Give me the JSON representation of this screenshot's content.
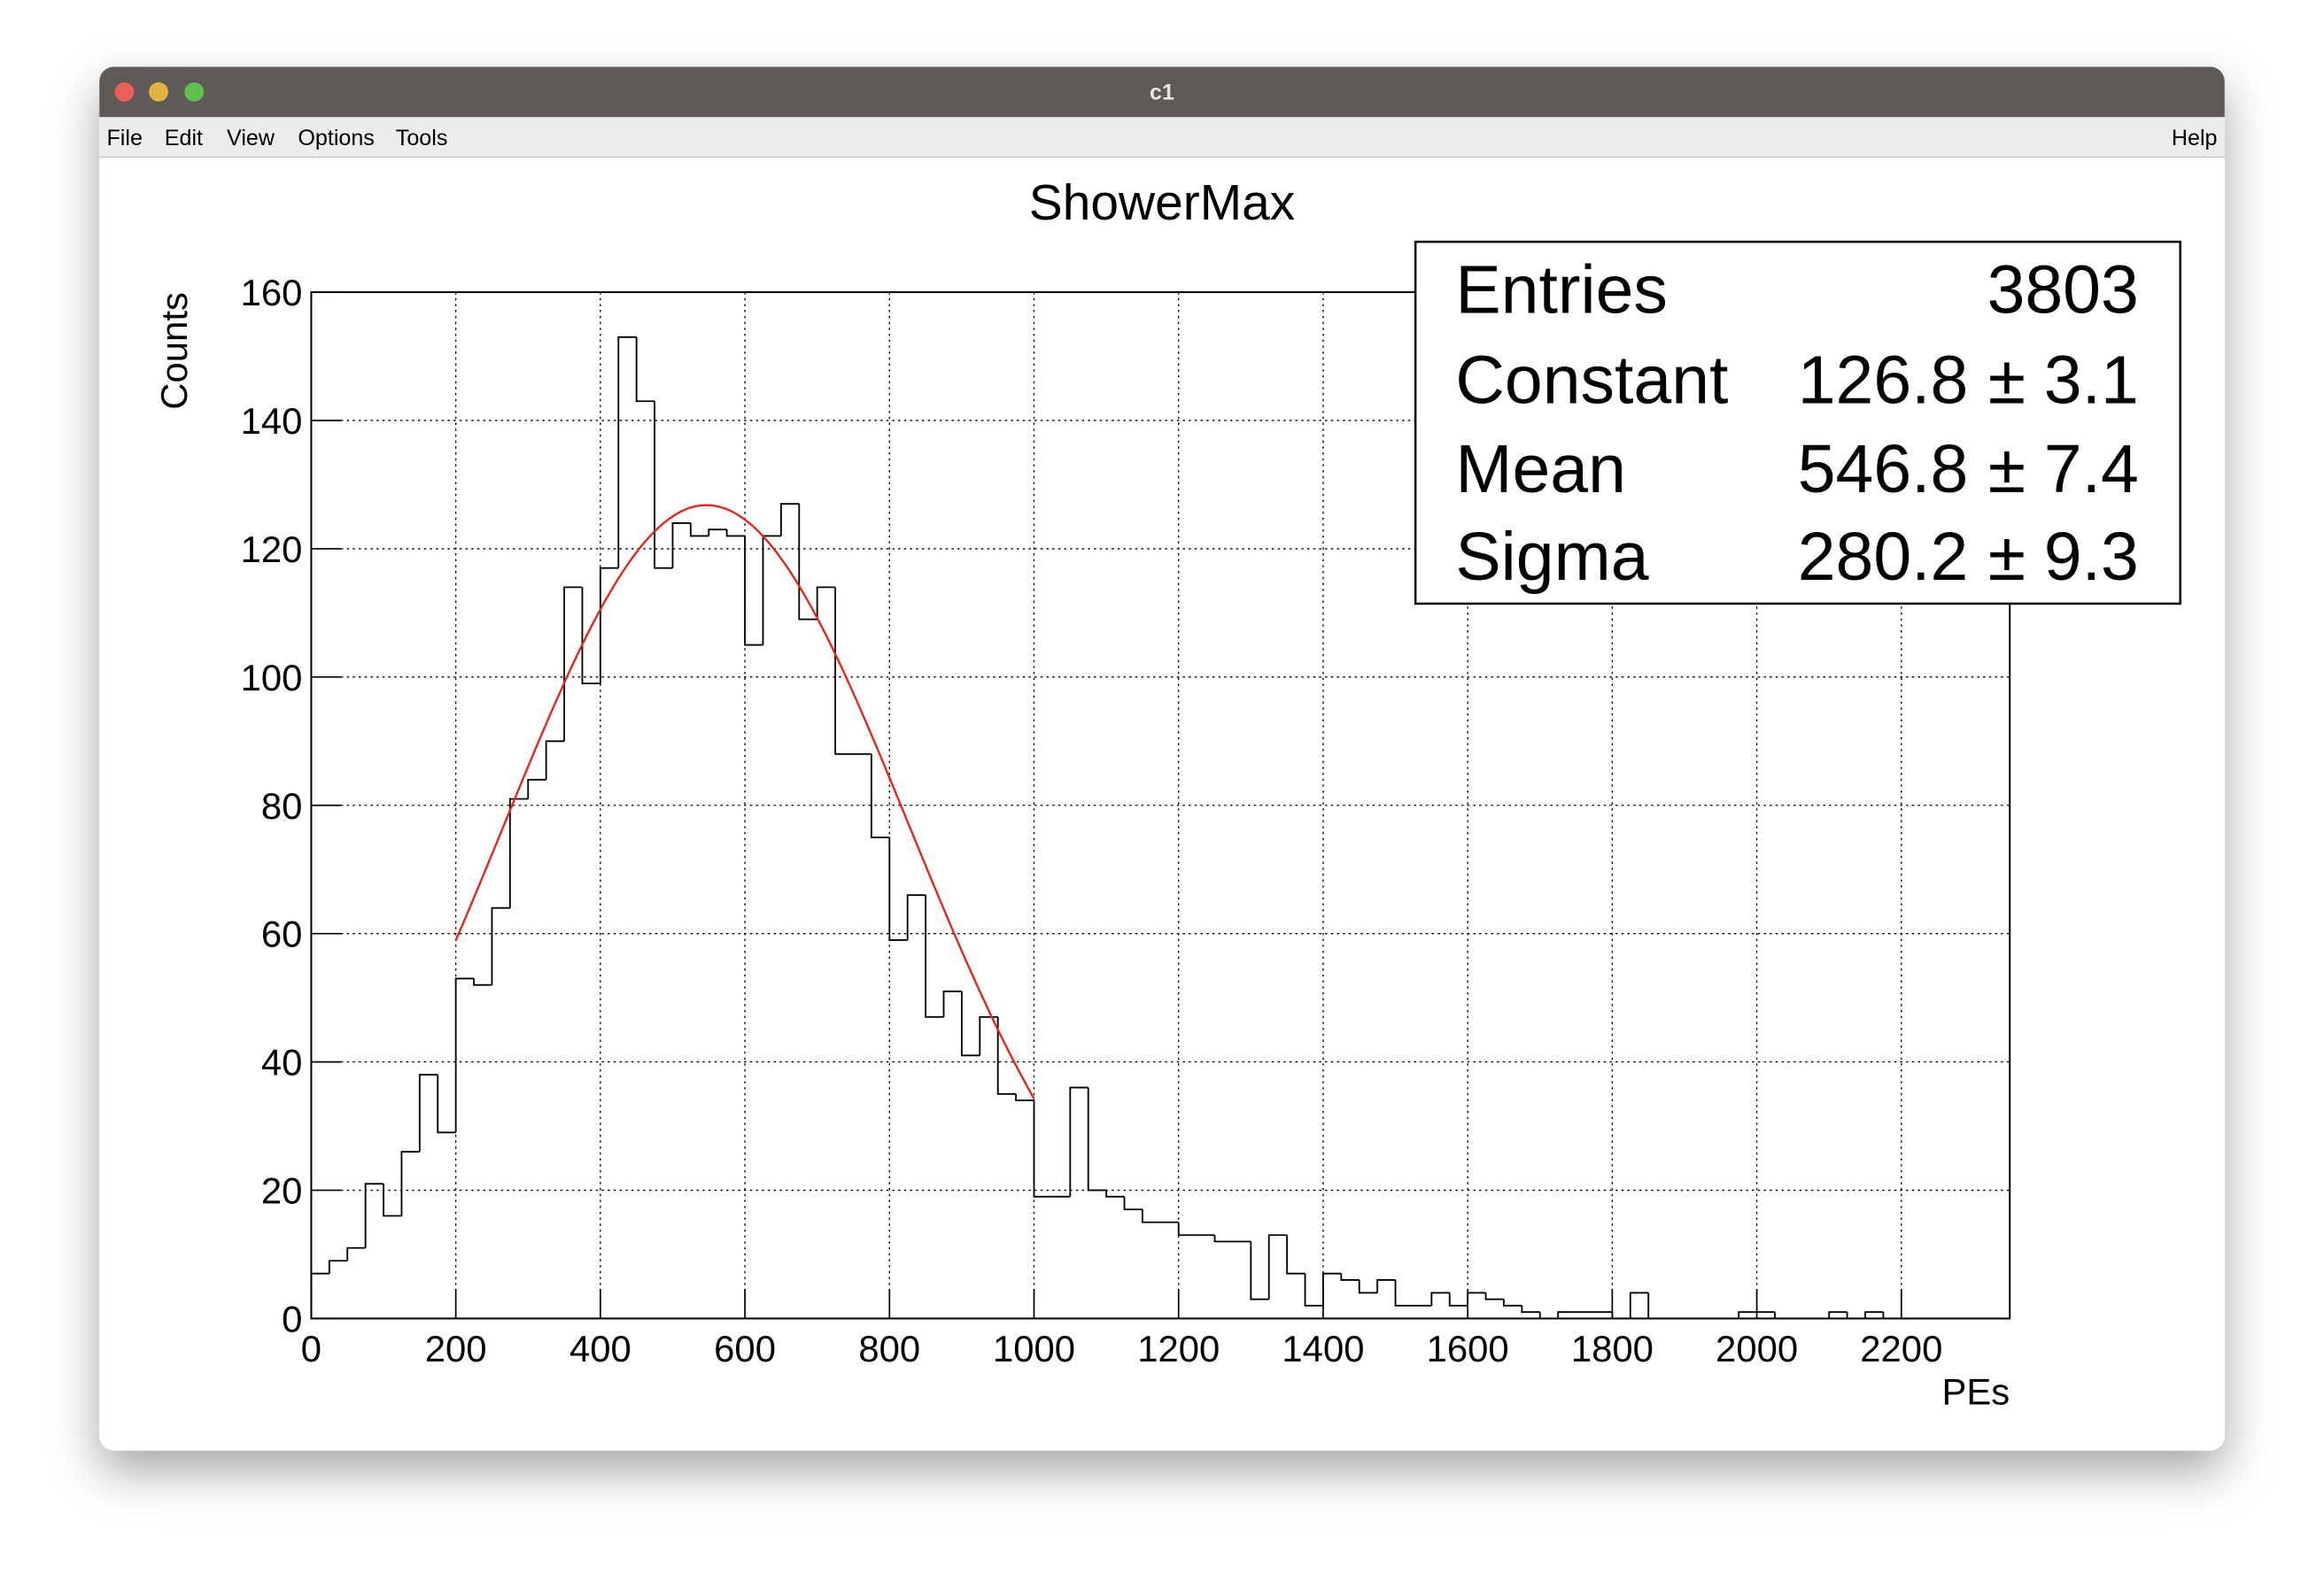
{
  "window": {
    "title": "c1",
    "menu": [
      "File",
      "Edit",
      "View",
      "Options",
      "Tools"
    ],
    "help": "Help"
  },
  "chart_data": {
    "type": "histogram",
    "title": "ShowerMax",
    "x_label": "PEs",
    "y_label": "Counts",
    "bins": [
      0,
      25,
      50,
      75,
      100,
      125,
      150,
      175,
      200,
      225,
      250,
      275,
      300,
      325,
      350,
      375,
      400,
      425,
      450,
      475,
      500,
      525,
      550,
      575,
      600,
      625,
      650,
      675,
      700,
      725,
      750,
      775,
      800,
      825,
      850,
      875,
      900,
      925,
      950,
      975,
      1000,
      1025,
      1050,
      1075,
      1100,
      1125,
      1150,
      1175,
      1200,
      1225,
      1250,
      1275,
      1300,
      1325,
      1350,
      1375,
      1400,
      1425,
      1450,
      1475,
      1500,
      1525,
      1550,
      1575,
      1600,
      1625,
      1650,
      1675,
      1700,
      1725,
      1750,
      1775,
      1800,
      1825,
      1850,
      1875,
      1900,
      1925,
      1950,
      1975,
      2000,
      2025,
      2050,
      2075,
      2100,
      2125,
      2150,
      2175,
      2200,
      2225,
      2250,
      2275,
      2300,
      2325,
      2350
    ],
    "values": [
      7,
      9,
      11,
      21,
      16,
      26,
      38,
      29,
      53,
      52,
      64,
      81,
      84,
      90,
      114,
      99,
      117,
      153,
      143,
      117,
      124,
      122,
      123,
      122,
      105,
      122,
      127,
      109,
      114,
      88,
      88,
      75,
      59,
      66,
      47,
      51,
      41,
      47,
      35,
      34,
      19,
      19,
      36,
      20,
      19,
      17,
      15,
      15,
      13,
      13,
      12,
      12,
      3,
      13,
      7,
      2,
      7,
      6,
      4,
      6,
      2,
      2,
      4,
      2,
      4,
      3,
      2,
      1,
      0,
      1,
      1,
      1,
      0,
      4,
      0,
      0,
      0,
      0,
      0,
      1,
      1,
      0,
      0,
      0,
      1,
      0,
      1,
      0,
      0,
      0,
      0,
      0,
      0,
      0
    ],
    "color": "#000000",
    "xlim": [
      0,
      2350
    ],
    "ylim": [
      0,
      160
    ],
    "xticks": [
      0,
      200,
      400,
      600,
      800,
      1000,
      1200,
      1400,
      1600,
      1800,
      2000,
      2200
    ],
    "yticks": [
      0,
      20,
      40,
      60,
      80,
      100,
      120,
      140,
      160
    ],
    "grid": true,
    "fit": {
      "color": "#e8211a",
      "range": [
        200,
        1000
      ]
    },
    "stats": {
      "separator": "±",
      "rows": [
        {
          "name": "Entries",
          "value": 3803
        },
        {
          "name": "Constant",
          "value": 126.8,
          "error": 3.1
        },
        {
          "name": "Mean",
          "value": 546.8,
          "error": 7.4
        },
        {
          "name": "Sigma",
          "value": 280.2,
          "error": 9.3
        }
      ]
    }
  }
}
